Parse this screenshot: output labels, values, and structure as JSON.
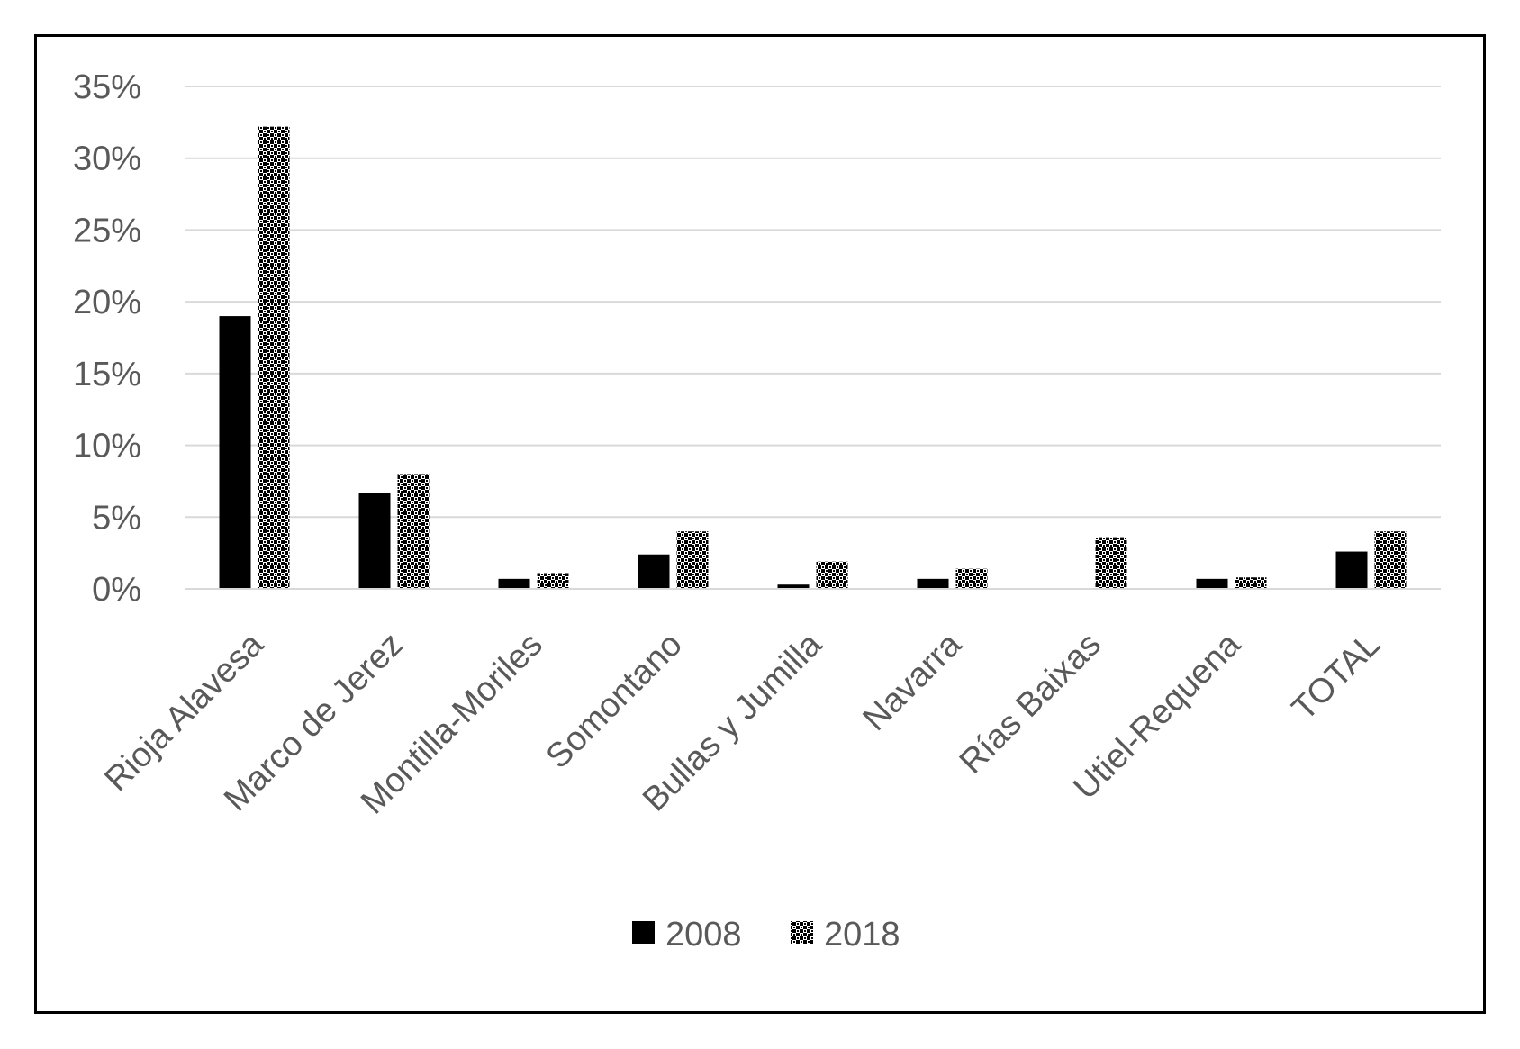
{
  "chart_data": {
    "type": "bar",
    "title": "",
    "xlabel": "",
    "ylabel": "",
    "categories": [
      "Rioja Alavesa",
      "Marco de Jerez",
      "Montilla-Moriles",
      "Somontano",
      "Bullas y Jumilla",
      "Navarra",
      "Rías Baixas",
      "Utiel-Requena",
      "TOTAL"
    ],
    "series": [
      {
        "name": "2008",
        "color": "#000000",
        "fill": "solid",
        "values": [
          19.0,
          6.7,
          0.7,
          2.4,
          0.3,
          0.7,
          0.0,
          0.7,
          2.6
        ]
      },
      {
        "name": "2018",
        "color": "#000000",
        "fill": "pattern-checker",
        "values": [
          32.2,
          8.0,
          1.1,
          4.0,
          1.9,
          1.4,
          3.6,
          0.8,
          4.0
        ]
      }
    ],
    "ylim": [
      0,
      35
    ],
    "yticks": [
      0,
      5,
      10,
      15,
      20,
      25,
      30,
      35
    ],
    "ytick_labels": [
      "0%",
      "5%",
      "10%",
      "15%",
      "20%",
      "25%",
      "30%",
      "35%"
    ],
    "grid": true,
    "gridline_color": "#d9d9d9",
    "legend": "bottom-center"
  }
}
